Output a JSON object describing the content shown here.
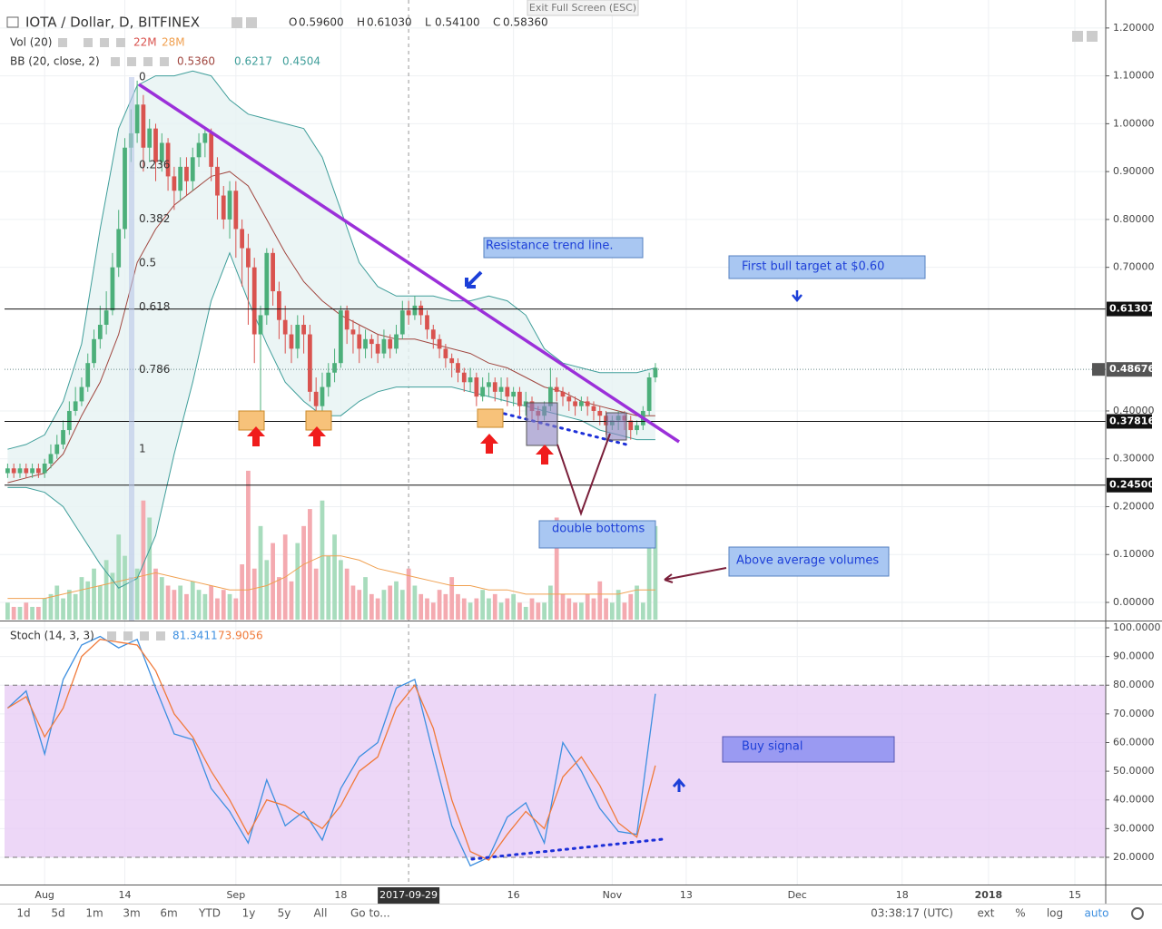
{
  "header": {
    "title": "IOTA / Dollar, D, BITFINEX",
    "ohlc": [
      {
        "key": "O",
        "text": "0.59600"
      },
      {
        "key": "H",
        "text": "0.61030"
      },
      {
        "key": "L",
        "text": "0.54100"
      },
      {
        "key": "C",
        "text": "0.58360"
      }
    ],
    "exit": "Exit Full Screen (ESC)"
  },
  "toolbar": {
    "ranges": [
      "1d",
      "5d",
      "1m",
      "3m",
      "6m",
      "YTD",
      "1y",
      "5y",
      "All"
    ],
    "goto": "Go to...",
    "clock": "03:38:17 (UTC)",
    "options": [
      "ext",
      "%",
      "log",
      "auto"
    ]
  },
  "chart_data": [
    {
      "type": "candlestick",
      "title": "IOTA / Dollar, D, BITFINEX",
      "up_color": "#4caf7a",
      "down_color": "#d9534f",
      "open": [
        0.27,
        0.28,
        0.27,
        0.28,
        0.27,
        0.28,
        0.27,
        0.29,
        0.31,
        0.33,
        0.36,
        0.4,
        0.42,
        0.45,
        0.5,
        0.55,
        0.58,
        0.61,
        0.7,
        0.78,
        0.95,
        0.98,
        1.04,
        0.95,
        0.99,
        0.92,
        0.96,
        0.89,
        0.86,
        0.91,
        0.88,
        0.93,
        0.96,
        0.98,
        0.91,
        0.85,
        0.8,
        0.86,
        0.78,
        0.74,
        0.7,
        0.56,
        0.6,
        0.73,
        0.65,
        0.59,
        0.56,
        0.53,
        0.58,
        0.56,
        0.44,
        0.41,
        0.45,
        0.48,
        0.5,
        0.61,
        0.57,
        0.56,
        0.53,
        0.55,
        0.54,
        0.52,
        0.55,
        0.53,
        0.56,
        0.61,
        0.6,
        0.62,
        0.6,
        0.57,
        0.55,
        0.53,
        0.51,
        0.5,
        0.48,
        0.46,
        0.47,
        0.43,
        0.45,
        0.46,
        0.44,
        0.45,
        0.43,
        0.44,
        0.41,
        0.42,
        0.4,
        0.39,
        0.41,
        0.45,
        0.44,
        0.43,
        0.42,
        0.41,
        0.42,
        0.41,
        0.4,
        0.39,
        0.37,
        0.38,
        0.39,
        0.38,
        0.36,
        0.37,
        0.4,
        0.47
      ],
      "high": [
        0.29,
        0.29,
        0.29,
        0.29,
        0.29,
        0.29,
        0.3,
        0.33,
        0.35,
        0.38,
        0.42,
        0.45,
        0.47,
        0.52,
        0.57,
        0.62,
        0.65,
        0.73,
        0.82,
        0.97,
        1.03,
        1.09,
        1.06,
        1.01,
        1.0,
        0.98,
        0.97,
        0.91,
        0.93,
        0.93,
        0.95,
        0.98,
        0.99,
        0.99,
        0.93,
        0.87,
        0.88,
        0.88,
        0.8,
        0.77,
        0.72,
        0.62,
        0.74,
        0.74,
        0.67,
        0.62,
        0.58,
        0.6,
        0.6,
        0.58,
        0.47,
        0.48,
        0.5,
        0.53,
        0.62,
        0.62,
        0.59,
        0.58,
        0.57,
        0.56,
        0.56,
        0.57,
        0.56,
        0.58,
        0.63,
        0.63,
        0.64,
        0.63,
        0.61,
        0.58,
        0.56,
        0.54,
        0.52,
        0.51,
        0.49,
        0.49,
        0.48,
        0.47,
        0.48,
        0.47,
        0.47,
        0.47,
        0.45,
        0.45,
        0.44,
        0.43,
        0.41,
        0.42,
        0.49,
        0.47,
        0.45,
        0.44,
        0.43,
        0.43,
        0.43,
        0.42,
        0.41,
        0.4,
        0.39,
        0.4,
        0.4,
        0.39,
        0.38,
        0.41,
        0.48,
        0.5
      ],
      "low": [
        0.26,
        0.26,
        0.26,
        0.26,
        0.26,
        0.26,
        0.26,
        0.28,
        0.3,
        0.32,
        0.35,
        0.39,
        0.41,
        0.44,
        0.49,
        0.53,
        0.56,
        0.6,
        0.68,
        0.76,
        0.92,
        0.96,
        0.9,
        0.92,
        0.88,
        0.9,
        0.86,
        0.82,
        0.84,
        0.85,
        0.86,
        0.91,
        0.93,
        0.88,
        0.8,
        0.78,
        0.76,
        0.72,
        0.66,
        0.58,
        0.5,
        0.4,
        0.58,
        0.62,
        0.55,
        0.52,
        0.5,
        0.51,
        0.52,
        0.42,
        0.38,
        0.4,
        0.43,
        0.46,
        0.49,
        0.54,
        0.52,
        0.5,
        0.51,
        0.51,
        0.5,
        0.51,
        0.51,
        0.52,
        0.55,
        0.58,
        0.59,
        0.58,
        0.55,
        0.53,
        0.51,
        0.49,
        0.47,
        0.46,
        0.44,
        0.44,
        0.41,
        0.42,
        0.43,
        0.42,
        0.42,
        0.41,
        0.41,
        0.39,
        0.39,
        0.38,
        0.36,
        0.38,
        0.4,
        0.42,
        0.41,
        0.4,
        0.39,
        0.4,
        0.39,
        0.38,
        0.37,
        0.35,
        0.36,
        0.36,
        0.36,
        0.34,
        0.35,
        0.36,
        0.39,
        0.46
      ],
      "close": [
        0.28,
        0.27,
        0.28,
        0.27,
        0.28,
        0.27,
        0.29,
        0.31,
        0.33,
        0.36,
        0.4,
        0.42,
        0.45,
        0.5,
        0.55,
        0.58,
        0.61,
        0.7,
        0.78,
        0.95,
        0.98,
        1.04,
        0.95,
        0.99,
        0.92,
        0.96,
        0.89,
        0.86,
        0.91,
        0.88,
        0.93,
        0.96,
        0.98,
        0.91,
        0.85,
        0.8,
        0.86,
        0.78,
        0.74,
        0.7,
        0.56,
        0.6,
        0.73,
        0.65,
        0.59,
        0.56,
        0.53,
        0.58,
        0.56,
        0.44,
        0.41,
        0.45,
        0.48,
        0.5,
        0.61,
        0.57,
        0.56,
        0.53,
        0.55,
        0.54,
        0.52,
        0.55,
        0.53,
        0.56,
        0.61,
        0.6,
        0.62,
        0.6,
        0.57,
        0.55,
        0.53,
        0.51,
        0.5,
        0.48,
        0.46,
        0.47,
        0.43,
        0.45,
        0.46,
        0.44,
        0.45,
        0.43,
        0.44,
        0.41,
        0.42,
        0.4,
        0.39,
        0.41,
        0.45,
        0.44,
        0.43,
        0.42,
        0.41,
        0.42,
        0.41,
        0.4,
        0.39,
        0.37,
        0.38,
        0.39,
        0.38,
        0.36,
        0.37,
        0.4,
        0.47,
        0.49
      ],
      "bands": {
        "name": "BB (20, close, 2)",
        "legend_values": [
          "0.5360",
          "0.6217",
          "0.4504"
        ],
        "basis_color": "#a0463f",
        "band_color": "#3f9e9a",
        "fill": "#e6f3f2",
        "x": [
          0,
          3,
          6,
          9,
          12,
          15,
          18,
          21,
          24,
          27,
          30,
          33,
          36,
          39,
          42,
          45,
          48,
          51,
          54,
          57,
          60,
          63,
          66,
          69,
          72,
          75,
          78,
          81,
          84,
          87,
          90,
          93,
          96,
          99,
          102,
          105
        ],
        "upper": [
          0.32,
          0.33,
          0.35,
          0.42,
          0.54,
          0.78,
          0.99,
          1.08,
          1.1,
          1.1,
          1.11,
          1.1,
          1.05,
          1.02,
          1.01,
          1.0,
          0.99,
          0.93,
          0.82,
          0.71,
          0.66,
          0.64,
          0.64,
          0.64,
          0.63,
          0.63,
          0.64,
          0.63,
          0.6,
          0.53,
          0.5,
          0.49,
          0.48,
          0.48,
          0.48,
          0.49
        ],
        "basis": [
          0.25,
          0.26,
          0.27,
          0.31,
          0.39,
          0.46,
          0.56,
          0.71,
          0.78,
          0.83,
          0.86,
          0.89,
          0.9,
          0.87,
          0.8,
          0.73,
          0.67,
          0.63,
          0.6,
          0.58,
          0.56,
          0.55,
          0.55,
          0.54,
          0.53,
          0.52,
          0.5,
          0.49,
          0.47,
          0.45,
          0.44,
          0.42,
          0.41,
          0.4,
          0.39,
          0.39
        ],
        "lower": [
          0.24,
          0.24,
          0.23,
          0.2,
          0.14,
          0.08,
          0.03,
          0.05,
          0.14,
          0.31,
          0.46,
          0.63,
          0.73,
          0.63,
          0.54,
          0.46,
          0.42,
          0.39,
          0.39,
          0.42,
          0.44,
          0.45,
          0.45,
          0.45,
          0.45,
          0.44,
          0.43,
          0.42,
          0.41,
          0.4,
          0.39,
          0.38,
          0.36,
          0.35,
          0.34,
          0.34
        ]
      },
      "xlim": [
        -0.5,
        178
      ],
      "ylim": [
        -0.036,
        1.249
      ],
      "yticks": [
        {
          "value": 1.2,
          "label": "1.20000"
        },
        {
          "value": 1.1,
          "label": "1.10000"
        },
        {
          "value": 1.0,
          "label": "1.00000"
        },
        {
          "value": 0.9,
          "label": "0.90000"
        },
        {
          "value": 0.8,
          "label": "0.80000"
        },
        {
          "value": 0.7,
          "label": "0.70000"
        },
        {
          "value": 0.4,
          "label": "0.40000"
        },
        {
          "value": 0.3,
          "label": "0.30000"
        },
        {
          "value": 0.2,
          "label": "0.20000"
        },
        {
          "value": 0.1,
          "label": "0.10000"
        },
        {
          "value": 0,
          "label": "0.00000"
        }
      ],
      "hlines": [
        {
          "value": 0.61301,
          "label": "0.61301"
        },
        {
          "value": 0.48676,
          "label": "0.48676",
          "style": "dotted"
        },
        {
          "value": 0.37816,
          "label": "0.37816"
        },
        {
          "value": 0.245,
          "label": "0.24500"
        }
      ],
      "fib_levels": [
        0,
        0.236,
        0.382,
        0.5,
        0.618,
        0.786,
        1
      ],
      "annotations": [
        "Resistance trend line.",
        "First bull target at $0.60",
        "double bottoms",
        "Above average volumes"
      ]
    },
    {
      "type": "bar",
      "name": "Vol (20)",
      "legend_values": [
        "22M",
        "28M"
      ],
      "up_color": "#a8dcbd",
      "down_color": "#f4aab0",
      "ma_color": "#f0a050",
      "values": [
        4,
        3,
        3,
        4,
        3,
        3,
        5,
        6,
        8,
        5,
        7,
        6,
        10,
        9,
        12,
        8,
        14,
        11,
        20,
        15,
        10,
        12,
        28,
        24,
        12,
        10,
        8,
        7,
        8,
        6,
        9,
        7,
        6,
        8,
        5,
        7,
        6,
        5,
        13,
        35,
        12,
        22,
        14,
        18,
        10,
        20,
        9,
        18,
        22,
        26,
        12,
        28,
        15,
        20,
        14,
        12,
        8,
        7,
        10,
        6,
        5,
        7,
        8,
        9,
        7,
        12,
        8,
        6,
        5,
        4,
        7,
        6,
        10,
        6,
        5,
        4,
        5,
        7,
        5,
        6,
        4,
        5,
        6,
        4,
        3,
        5,
        4,
        4,
        8,
        24,
        6,
        5,
        4,
        4,
        6,
        5,
        9,
        5,
        4,
        7,
        4,
        6,
        8,
        4,
        20,
        22
      ],
      "ma": {
        "x": [
          0,
          3,
          6,
          9,
          12,
          15,
          18,
          21,
          24,
          27,
          30,
          33,
          36,
          39,
          42,
          45,
          48,
          51,
          54,
          57,
          60,
          63,
          66,
          69,
          72,
          75,
          78,
          81,
          84,
          87,
          90,
          93,
          96,
          99,
          102,
          105
        ],
        "values": [
          5,
          5,
          5,
          6,
          7,
          8,
          9,
          10,
          11,
          10,
          9,
          8,
          7,
          7,
          8,
          10,
          13,
          15,
          15,
          14,
          12,
          11,
          10,
          9,
          8,
          8,
          7,
          7,
          6,
          6,
          6,
          6,
          6,
          6,
          7,
          7
        ]
      },
      "xlim": [
        -0.5,
        178
      ],
      "ylim": [
        0,
        45
      ]
    },
    {
      "type": "line",
      "name": "Stoch (14, 3, 3)",
      "legend_values": [
        "81.3411",
        "73.9056"
      ],
      "x": [
        0,
        3,
        6,
        9,
        12,
        15,
        18,
        21,
        24,
        27,
        30,
        33,
        36,
        39,
        42,
        45,
        48,
        51,
        54,
        57,
        60,
        63,
        66,
        69,
        72,
        75,
        78,
        81,
        84,
        87,
        90,
        93,
        96,
        99,
        102,
        105
      ],
      "series": [
        {
          "color": "#3d8fe0",
          "values": [
            72,
            78,
            56,
            82,
            94,
            97,
            93,
            96,
            79,
            63,
            61,
            44,
            36,
            25,
            47,
            31,
            36,
            26,
            44,
            55,
            60,
            79,
            82,
            56,
            31,
            17,
            20,
            34,
            39,
            25,
            60,
            50,
            37,
            29,
            28,
            77
          ]
        },
        {
          "color": "#f07a3a",
          "values": [
            72,
            76,
            62,
            72,
            90,
            96,
            95,
            94,
            85,
            70,
            62,
            50,
            40,
            28,
            40,
            38,
            34,
            30,
            38,
            50,
            55,
            72,
            80,
            65,
            40,
            22,
            19,
            28,
            36,
            30,
            48,
            55,
            45,
            32,
            27,
            52
          ]
        }
      ],
      "band": [
        20,
        80
      ],
      "band_fill": "#e8cdf5",
      "xlim": [
        -0.5,
        178
      ],
      "ylim": [
        10.5,
        101.9
      ],
      "yticks": [
        {
          "value": 100,
          "label": "100.0000"
        },
        {
          "value": 90,
          "label": "90.0000"
        },
        {
          "value": 80,
          "label": "80.0000"
        },
        {
          "value": 70,
          "label": "70.0000"
        },
        {
          "value": 60,
          "label": "60.0000"
        },
        {
          "value": 50,
          "label": "50.0000"
        },
        {
          "value": 40,
          "label": "40.0000"
        },
        {
          "value": 30,
          "label": "30.0000"
        },
        {
          "value": 20,
          "label": "20.0000"
        }
      ],
      "xticks": [
        {
          "value": 6,
          "label": "Aug"
        },
        {
          "value": 19,
          "label": "14"
        },
        {
          "value": 37,
          "label": "Sep"
        },
        {
          "value": 54,
          "label": "18"
        },
        {
          "value": 82,
          "label": "16"
        },
        {
          "value": 98,
          "label": "Nov"
        },
        {
          "value": 110,
          "label": "13"
        },
        {
          "value": 128,
          "label": "Dec"
        },
        {
          "value": 145,
          "label": "18"
        },
        {
          "value": 159,
          "label": "2018"
        },
        {
          "value": 173,
          "label": "15"
        }
      ],
      "crosshair": {
        "value": 65,
        "label": "2017-09-29"
      },
      "annotations": [
        "Buy signal"
      ]
    }
  ]
}
